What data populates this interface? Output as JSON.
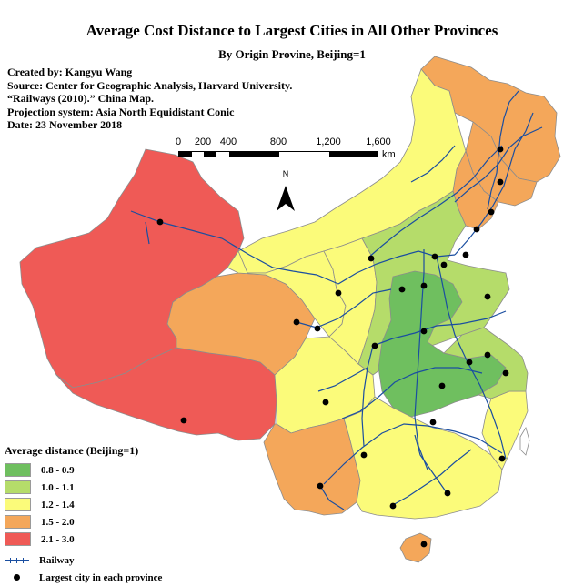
{
  "title": "Average Cost Distance to Largest Cities in All Other Provinces",
  "subtitle": "By Origin Provine, Beijing=1",
  "metadata_lines": [
    "Created by: Kangyu Wang",
    "Source: Center for Geographic Analysis, Harvard University.",
    "“Railways (2010).” China Map.",
    "Projection system: Asia North Equidistant Conic",
    "Date: 23 November 2018"
  ],
  "scale_bar": {
    "labels": [
      "0",
      "200",
      "400",
      "800",
      "1,200",
      "1,600"
    ],
    "unit": "km"
  },
  "north_arrow": {
    "label": "N"
  },
  "legend": {
    "title": "Average distance (Beijing=1)",
    "classes": [
      {
        "label": "0.8 - 0.9",
        "color": "#6fbf5f"
      },
      {
        "label": "1.0 - 1.1",
        "color": "#b5dc6a"
      },
      {
        "label": "1.2 - 1.4",
        "color": "#fbfb7a"
      },
      {
        "label": "1.5 - 2.0",
        "color": "#f4a75a"
      },
      {
        "label": "2.1 - 3.0",
        "color": "#ef5a56"
      }
    ],
    "railway_label": "Railway",
    "city_label": "Largest city in each province"
  },
  "colors": {
    "railway": "#1a4ea0",
    "province_border": "#8c8c8c"
  }
}
